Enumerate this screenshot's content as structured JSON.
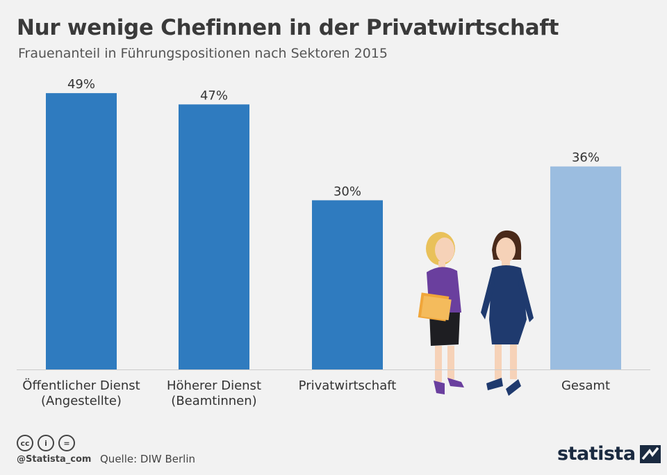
{
  "header": {
    "title": "Nur wenige Chefinnen in der Privatwirtschaft",
    "subtitle": "Frauenanteil in Führungspositionen nach Sektoren 2015"
  },
  "chart_data": {
    "type": "bar",
    "categories": [
      [
        "Öffentlicher Dienst",
        "(Angestellte)"
      ],
      [
        "Höherer Dienst",
        "(Beamtinnen)"
      ],
      [
        "Privatwirtschaft"
      ],
      [
        "Gesamt"
      ]
    ],
    "values": [
      49,
      47,
      30,
      36
    ],
    "value_labels": [
      "49%",
      "47%",
      "30%",
      "36%"
    ],
    "ylim": [
      0,
      50
    ],
    "grid": false,
    "colors": [
      "#2f7bbf",
      "#2f7bbf",
      "#2f7bbf",
      "#9bbde0"
    ]
  },
  "footer": {
    "license_icons": [
      "cc",
      "i",
      "="
    ],
    "handle": "@Statista_com",
    "source": "Quelle: DIW Berlin",
    "logo": "statista",
    "logo_icon": "statista-logo-icon"
  }
}
